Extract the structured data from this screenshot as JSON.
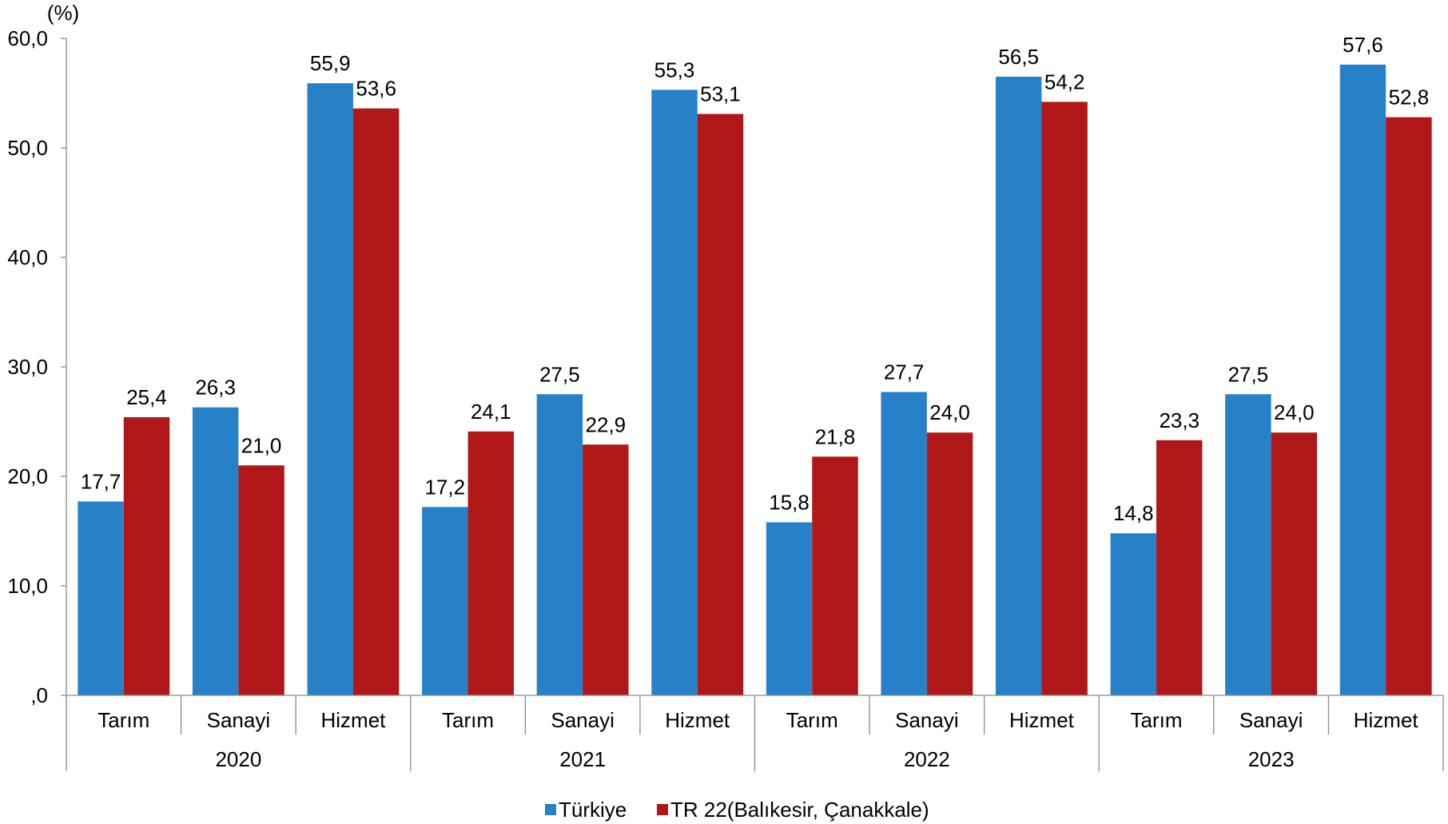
{
  "chart_data": {
    "type": "bar",
    "ylabel": "(%)",
    "ylim": [
      0,
      60
    ],
    "yticks": [
      0,
      10,
      20,
      30,
      40,
      50,
      60
    ],
    "ytick_labels": [
      ",0",
      "10,0",
      "20,0",
      "30,0",
      "40,0",
      "50,0",
      "60,0"
    ],
    "groups": [
      "2020",
      "2021",
      "2022",
      "2023"
    ],
    "categories": [
      "Tarım",
      "Sanayi",
      "Hizmet",
      "Tarım",
      "Sanayi",
      "Hizmet",
      "Tarım",
      "Sanayi",
      "Hizmet",
      "Tarım",
      "Sanayi",
      "Hizmet"
    ],
    "series": [
      {
        "name": "Türkiye",
        "color": "#2681C8",
        "values": [
          17.7,
          26.3,
          55.9,
          17.2,
          27.5,
          55.3,
          15.8,
          27.7,
          56.5,
          14.8,
          27.5,
          57.6
        ],
        "labels": [
          "17,7",
          "26,3",
          "55,9",
          "17,2",
          "27,5",
          "55,3",
          "15,8",
          "27,7",
          "56,5",
          "14,8",
          "27,5",
          "57,6"
        ]
      },
      {
        "name": "TR 22(Balıkesir, Çanakkale)",
        "color": "#B01718",
        "values": [
          25.4,
          21.0,
          53.6,
          24.1,
          22.9,
          53.1,
          21.8,
          24.0,
          54.2,
          23.3,
          24.0,
          52.8
        ],
        "labels": [
          "25,4",
          "21,0",
          "53,6",
          "24,1",
          "22,9",
          "53,1",
          "21,8",
          "24,0",
          "54,2",
          "23,3",
          "24,0",
          "52,8"
        ]
      }
    ],
    "grid": false,
    "legend": "bottom"
  }
}
